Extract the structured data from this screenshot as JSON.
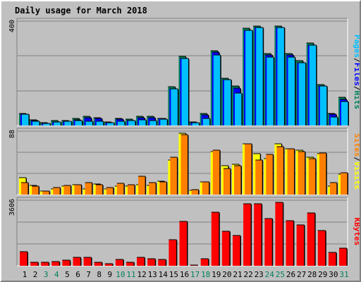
{
  "title": "Daily usage for March 2018",
  "colors": {
    "hits": "#00805c",
    "files": "#0000ff",
    "pages": "#00c0ff",
    "visits": "#ffff00",
    "sites": "#ff8000",
    "kbytes": "#ff0000",
    "weekend_day_label": "#00805c",
    "weekday_label": "#000000",
    "title": "#0000c0"
  },
  "chart_data": [
    {
      "type": "bar",
      "name": "hits-files-pages",
      "categories": [
        "1",
        "2",
        "3",
        "4",
        "5",
        "6",
        "7",
        "8",
        "9",
        "10",
        "11",
        "12",
        "13",
        "14",
        "15",
        "16",
        "17",
        "18",
        "19",
        "20",
        "21",
        "22",
        "23",
        "24",
        "25",
        "26",
        "27",
        "28",
        "29",
        "30",
        "31"
      ],
      "ylim": [
        0,
        400
      ],
      "scale_label": "400",
      "axis_labels": [
        "Pages",
        "Files",
        "Hits"
      ],
      "series": [
        {
          "name": "Hits",
          "values": [
            46,
            22,
            12,
            18,
            20,
            28,
            35,
            30,
            14,
            28,
            24,
            36,
            34,
            28,
            148,
            265,
            14,
            45,
            287,
            182,
            150,
            372,
            382,
            276,
            382,
            276,
            248,
            315,
            158,
            46,
            108
          ]
        },
        {
          "name": "Files",
          "values": [
            44,
            18,
            8,
            14,
            16,
            22,
            30,
            26,
            10,
            24,
            20,
            30,
            30,
            26,
            140,
            258,
            12,
            40,
            280,
            175,
            144,
            365,
            376,
            270,
            376,
            270,
            240,
            308,
            152,
            42,
            100
          ]
        },
        {
          "name": "Pages",
          "values": [
            44,
            16,
            8,
            14,
            16,
            18,
            15,
            15,
            10,
            15,
            20,
            22,
            20,
            25,
            140,
            258,
            12,
            28,
            270,
            175,
            125,
            365,
            376,
            262,
            376,
            262,
            240,
            308,
            152,
            32,
            92
          ]
        }
      ]
    },
    {
      "type": "bar",
      "name": "visits-sites",
      "ylim": [
        0,
        88
      ],
      "scale_label": "88",
      "axis_labels": [
        "Sites",
        "Visits"
      ],
      "series": [
        {
          "name": "Visits",
          "values": [
            23,
            13,
            5,
            8,
            12,
            14,
            8,
            15,
            8,
            12,
            12,
            14,
            13,
            19,
            48,
            85,
            6,
            18,
            60,
            40,
            42,
            70,
            57,
            50,
            70,
            64,
            62,
            52,
            57,
            12,
            28
          ]
        },
        {
          "name": "Sites",
          "values": [
            17,
            12,
            5,
            10,
            13,
            14,
            17,
            14,
            10,
            16,
            14,
            25,
            17,
            18,
            52,
            83,
            7,
            18,
            62,
            36,
            40,
            70,
            48,
            56,
            66,
            64,
            60,
            50,
            58,
            17,
            30
          ]
        }
      ]
    },
    {
      "type": "bar",
      "name": "kbytes",
      "ylim": [
        0,
        3606
      ],
      "scale_label": "3606",
      "axis_labels": [
        "KBytes"
      ],
      "series": [
        {
          "name": "KBytes",
          "values": [
            760,
            200,
            180,
            220,
            300,
            470,
            470,
            200,
            100,
            330,
            200,
            480,
            400,
            350,
            1450,
            2450,
            40,
            380,
            2940,
            1900,
            1680,
            3420,
            3430,
            2600,
            3500,
            2500,
            2250,
            2900,
            1950,
            730,
            950
          ]
        }
      ]
    }
  ]
}
